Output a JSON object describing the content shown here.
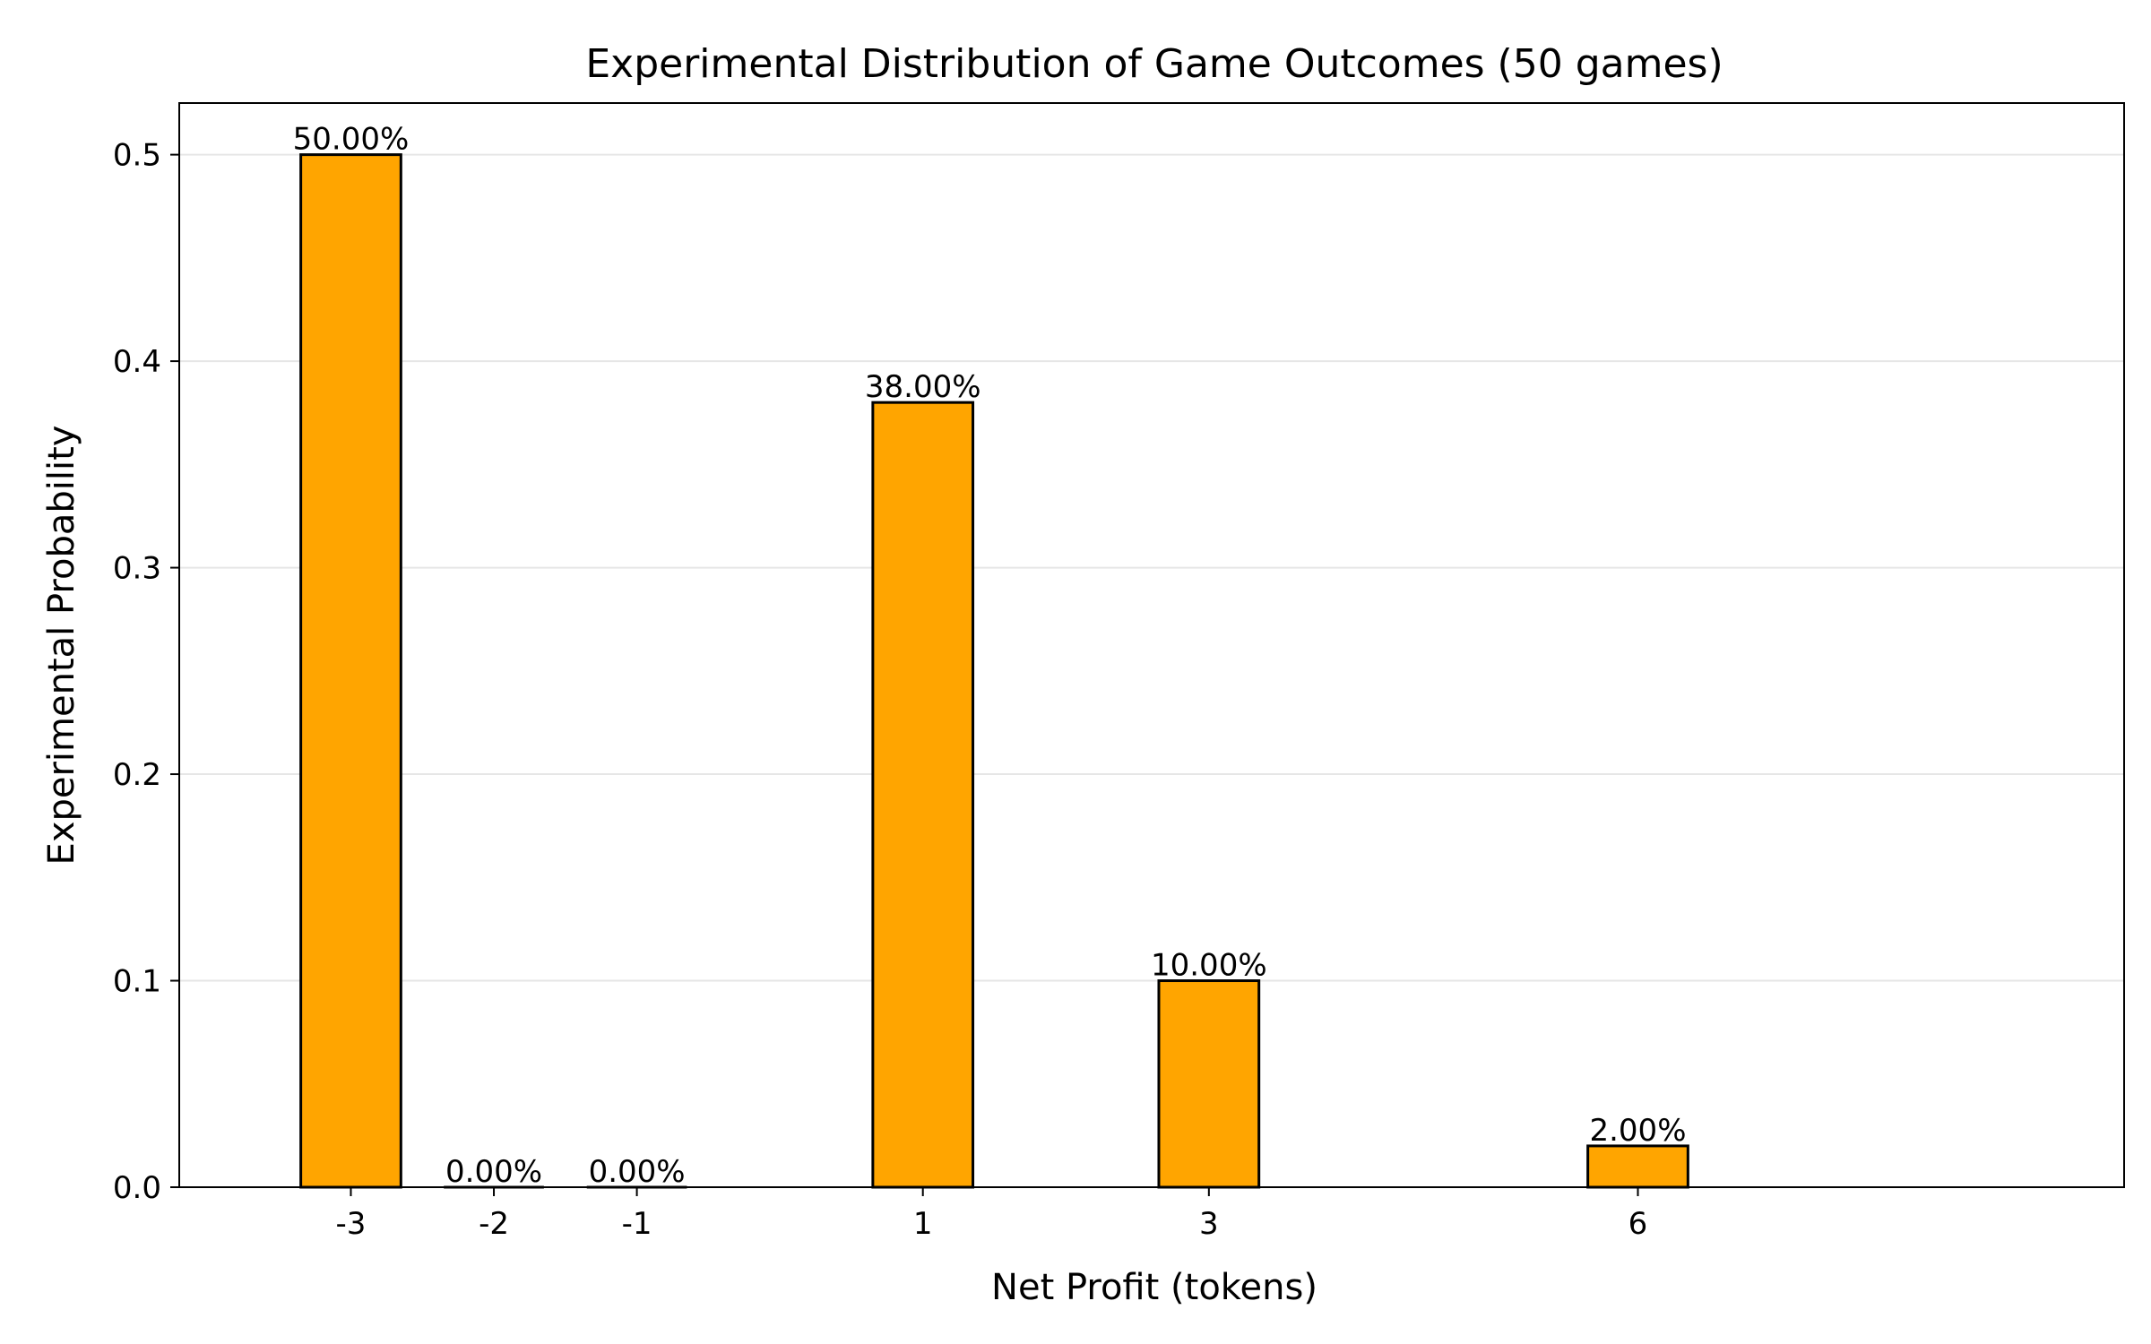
{
  "chart_data": {
    "type": "bar",
    "title": "Experimental Distribution of Game Outcomes (50 games)",
    "xlabel": "Net Profit (tokens)",
    "ylabel": "Experimental Probability",
    "x": [
      -3,
      -2,
      -1,
      1,
      3,
      6
    ],
    "categories": [
      "-3",
      "-2",
      "-1",
      "1",
      "3",
      "6"
    ],
    "values": [
      0.5,
      0.0,
      0.0,
      0.38,
      0.1,
      0.02
    ],
    "data_labels": [
      "50.00%",
      "0.00%",
      "0.00%",
      "38.00%",
      "10.00%",
      "2.00%"
    ],
    "xlim": [
      -4.2,
      9.4
    ],
    "ylim": [
      0,
      0.525
    ],
    "yticks": [
      0.0,
      0.1,
      0.2,
      0.3,
      0.4,
      0.5
    ],
    "ytick_labels": [
      "0.0",
      "0.1",
      "0.2",
      "0.3",
      "0.4",
      "0.5"
    ],
    "grid": "y",
    "bar_width": 0.7,
    "colors": {
      "bar_fill": "#FFA500",
      "bar_edge": "#000000",
      "grid": "#E6E6E6",
      "axis": "#000000",
      "background": "#FFFFFF"
    }
  }
}
